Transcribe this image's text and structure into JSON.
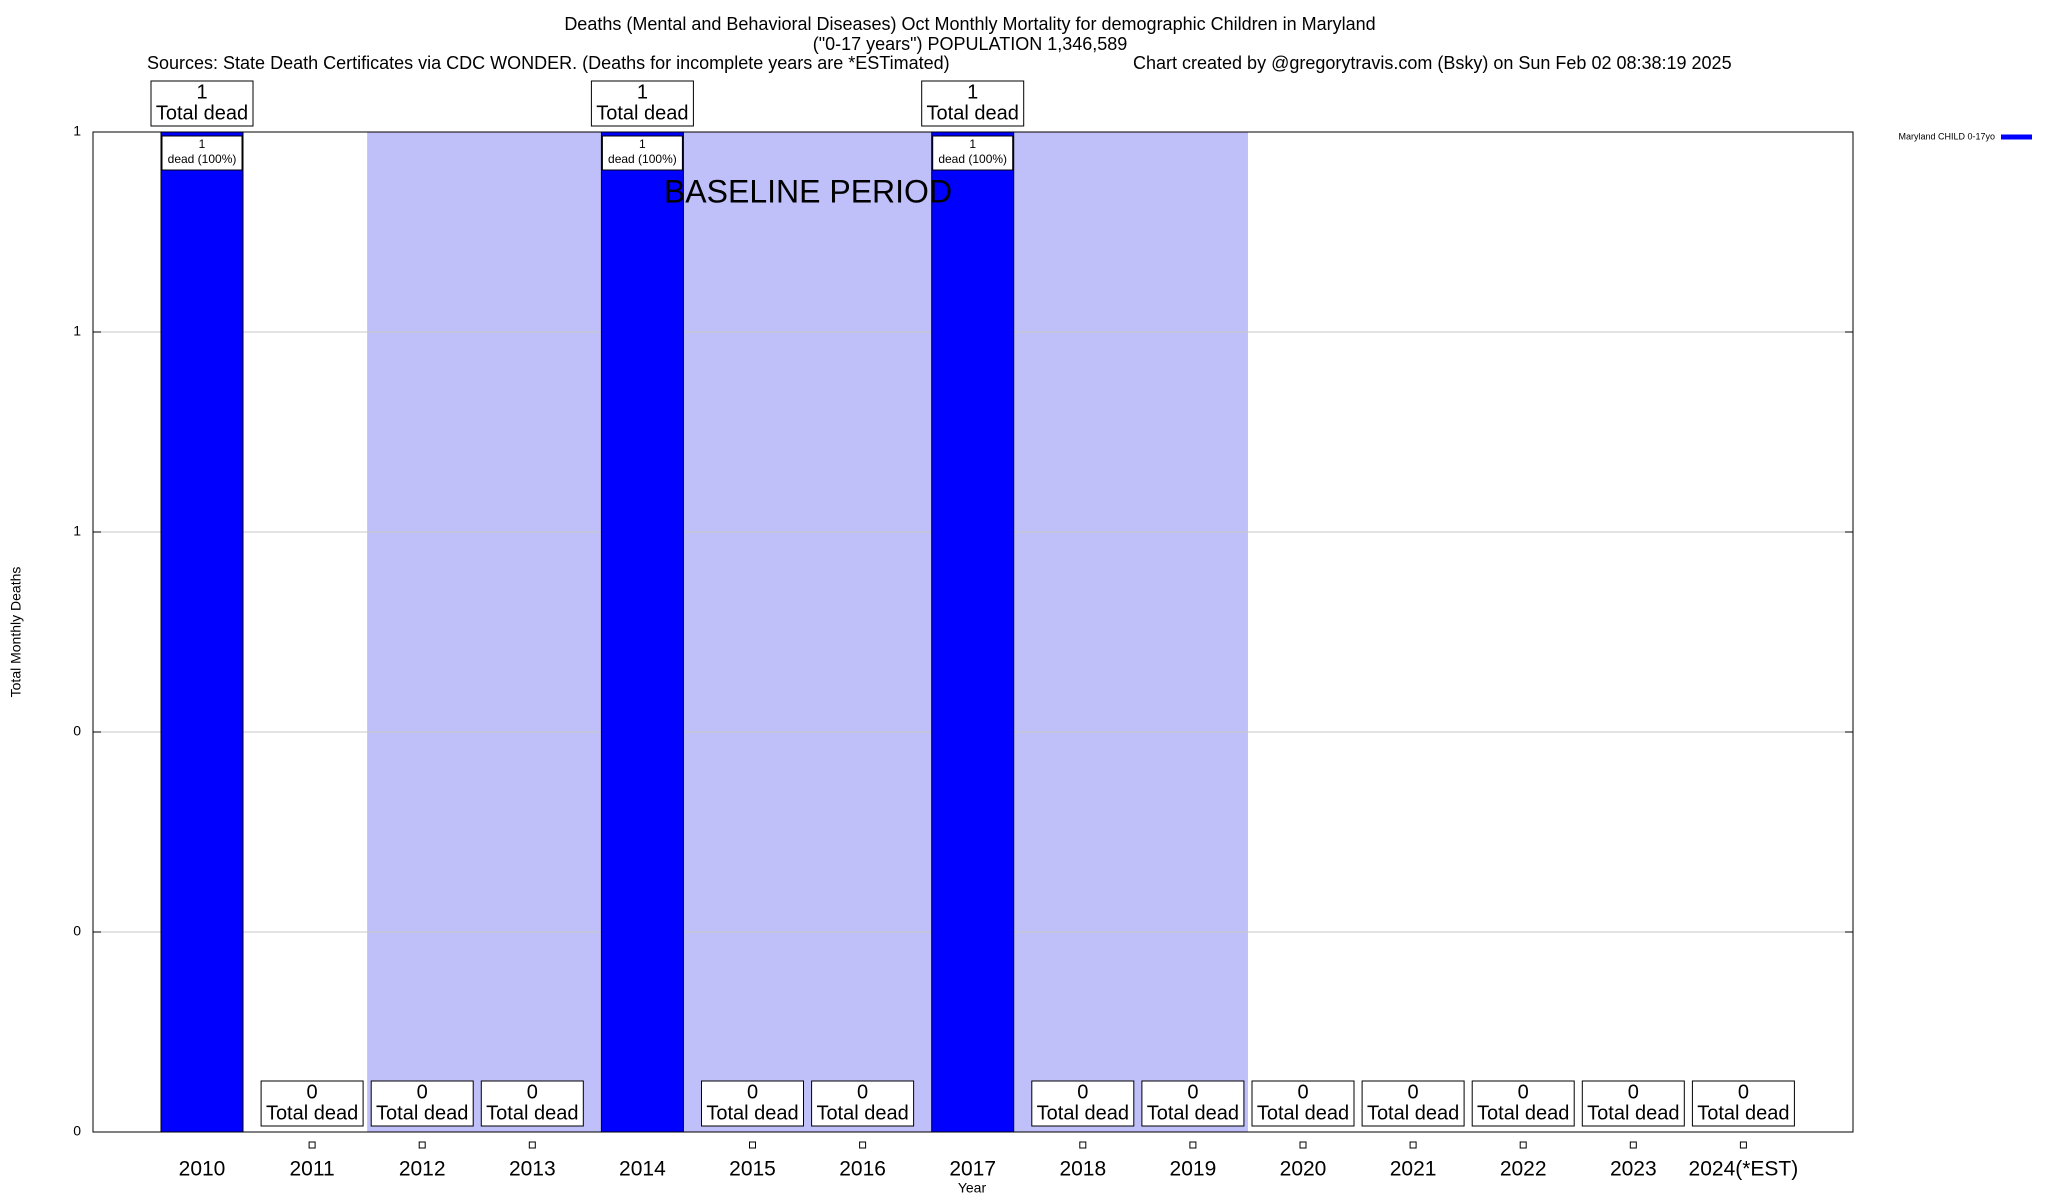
{
  "chart_data": {
    "type": "bar",
    "title": [
      "Deaths (Mental and Behavioral Diseases) Oct Monthly Mortality for demographic Children in Maryland",
      "(\"0-17 years\") POPULATION 1,346,589"
    ],
    "subtitle": [
      "Sources: State Death Certificates via CDC WONDER. (Deaths for incomplete years are *ESTimated)",
      "Chart created by @gregorytravis.com (Bsky) on Sun Feb 02 08:38:19 2025"
    ],
    "x_label": "Year",
    "y_label": "Total Monthly Deaths",
    "categories": [
      "2010",
      "2011",
      "2012",
      "2013",
      "2014",
      "2015",
      "2016",
      "2017",
      "2018",
      "2019",
      "2020",
      "2021",
      "2022",
      "2023",
      "2024(*EST)"
    ],
    "series": [
      {
        "name": "Maryland CHILD 0-17yo",
        "color": "#0000ff",
        "values": [
          1,
          0,
          0,
          0,
          1,
          0,
          0,
          1,
          0,
          0,
          0,
          0,
          0,
          0,
          0
        ]
      }
    ],
    "total_label": "Total dead",
    "share_label": "dead (100%)",
    "baseline": {
      "label": "BASELINE PERIOD",
      "start": "2012",
      "end": "2019",
      "color": "#bfbffa"
    },
    "ylim": [
      0,
      1
    ],
    "yticks": [
      0,
      {
        "value": 0.2,
        "label": "0"
      },
      {
        "value": 0.4,
        "label": "0"
      },
      {
        "value": 0.6,
        "label": "1"
      },
      {
        "value": 0.8,
        "label": "1"
      },
      1
    ],
    "grid": true,
    "legend": "top-right"
  }
}
